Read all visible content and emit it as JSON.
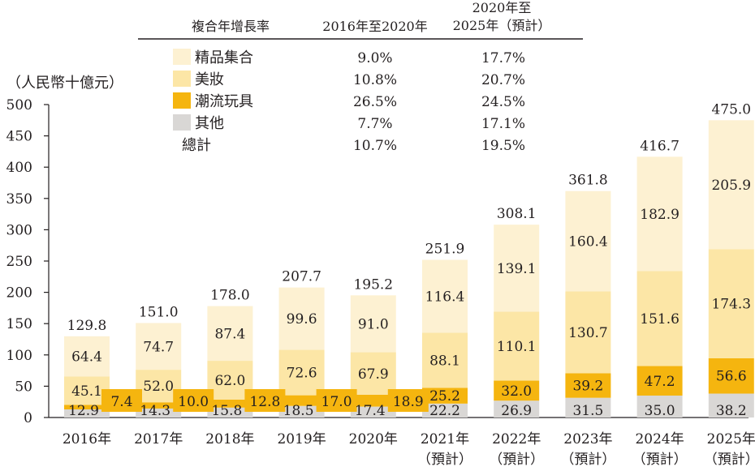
{
  "chart_data": {
    "type": "bar",
    "stacked": true,
    "unit_label": "（人民幣十億元）",
    "ylim": [
      0,
      500
    ],
    "yticks": [
      0,
      50,
      100,
      150,
      200,
      250,
      300,
      350,
      400,
      450,
      500
    ],
    "categories": [
      {
        "line1": "2016年",
        "line2": ""
      },
      {
        "line1": "2017年",
        "line2": ""
      },
      {
        "line1": "2018年",
        "line2": ""
      },
      {
        "line1": "2019年",
        "line2": ""
      },
      {
        "line1": "2020年",
        "line2": ""
      },
      {
        "line1": "2021年",
        "line2": "（預計）"
      },
      {
        "line1": "2022年",
        "line2": "（預計）"
      },
      {
        "line1": "2023年",
        "line2": "（預計）"
      },
      {
        "line1": "2024年",
        "line2": "（預計）"
      },
      {
        "line1": "2025年",
        "line2": "（預計）"
      }
    ],
    "series": [
      {
        "name": "其他",
        "color": "#d9d7d5",
        "values": [
          12.9,
          14.3,
          15.8,
          18.5,
          17.4,
          22.2,
          26.9,
          31.5,
          35.0,
          38.2
        ],
        "labels": [
          "12.9",
          "14.3",
          "15.8",
          "18.5",
          "17.4",
          "22.2",
          "26.9",
          "31.5",
          "35.0",
          "38.2"
        ]
      },
      {
        "name": "潮流玩具",
        "color": "#f5b50f",
        "values": [
          7.4,
          10.0,
          12.8,
          17.0,
          18.9,
          25.2,
          32.0,
          39.2,
          47.2,
          56.6
        ],
        "labels": [
          "7.4",
          "10.0",
          "12.8",
          "17.0",
          "18.9",
          "25.2",
          "32.0",
          "39.2",
          "47.2",
          "56.6"
        ]
      },
      {
        "name": "美妝",
        "color": "#fce6a6",
        "values": [
          45.1,
          52.0,
          62.0,
          72.6,
          67.9,
          88.1,
          110.1,
          130.7,
          151.6,
          174.3
        ],
        "labels": [
          "45.1",
          "52.0",
          "62.0",
          "72.6",
          "67.9",
          "88.1",
          "110.1",
          "130.7",
          "151.6",
          "174.3"
        ]
      },
      {
        "name": "精品集合",
        "color": "#fdf1d2",
        "values": [
          64.4,
          74.7,
          87.4,
          99.6,
          91.0,
          116.4,
          139.1,
          160.4,
          182.9,
          205.9
        ],
        "labels": [
          "64.4",
          "74.7",
          "87.4",
          "99.6",
          "91.0",
          "116.4",
          "139.1",
          "160.4",
          "182.9",
          "205.9"
        ]
      }
    ],
    "totals": [
      129.8,
      151.0,
      178.0,
      207.7,
      195.2,
      251.9,
      308.1,
      361.8,
      416.7,
      475.0
    ],
    "total_labels": [
      "129.8",
      "151.0",
      "178.0",
      "207.7",
      "195.2",
      "251.9",
      "308.1",
      "361.8",
      "416.7",
      "475.0"
    ]
  },
  "cagr_table": {
    "header": {
      "col0": "複合年增長率",
      "col1": "2016年至2020年",
      "col2_line1": "2020年至",
      "col2_line2": "2025年（預計）"
    },
    "rows": [
      {
        "label": "精品集合",
        "color": "#fdf1d2",
        "v1": "9.0%",
        "v2": "17.7%"
      },
      {
        "label": "美妝",
        "color": "#fce6a6",
        "v1": "10.8%",
        "v2": "20.7%"
      },
      {
        "label": "潮流玩具",
        "color": "#f5b50f",
        "v1": "26.5%",
        "v2": "24.5%"
      },
      {
        "label": "其他",
        "color": "#d9d7d5",
        "v1": "7.7%",
        "v2": "17.1%"
      },
      {
        "label": "總計",
        "color": "",
        "v1": "10.7%",
        "v2": "19.5%"
      }
    ]
  }
}
